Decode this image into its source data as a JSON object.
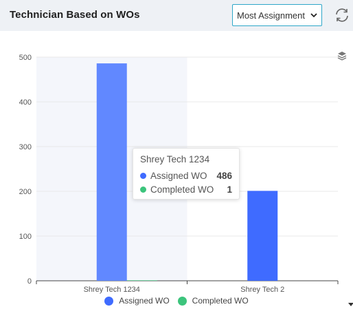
{
  "header": {
    "title": "Technician Based on WOs",
    "filter_selected": "Most Assignment",
    "refresh_icon": "refresh-icon",
    "dropdown_icon": "chevron-down-icon"
  },
  "toolbar_icon": "layers-icon",
  "colors": {
    "assigned": "#3f6bff",
    "assigned_highlight": "#6188ff",
    "completed": "#3cc47c",
    "hover_band": "#f4f6fb"
  },
  "chart_data": {
    "type": "bar",
    "categories": [
      "Shrey Tech 1234",
      "Shrey Tech 2"
    ],
    "series": [
      {
        "name": "Assigned WO",
        "values": [
          486,
          201
        ]
      },
      {
        "name": "Completed WO",
        "values": [
          1,
          0
        ]
      }
    ],
    "y_ticks": [
      0,
      100,
      200,
      300,
      400,
      500
    ],
    "ylim": [
      0,
      500
    ],
    "grid": true,
    "legend": "bottom-center",
    "tooltip": {
      "category": "Shrey Tech 1234",
      "rows": [
        {
          "name": "Assigned WO",
          "value": "486"
        },
        {
          "name": "Completed WO",
          "value": "1"
        }
      ]
    }
  }
}
